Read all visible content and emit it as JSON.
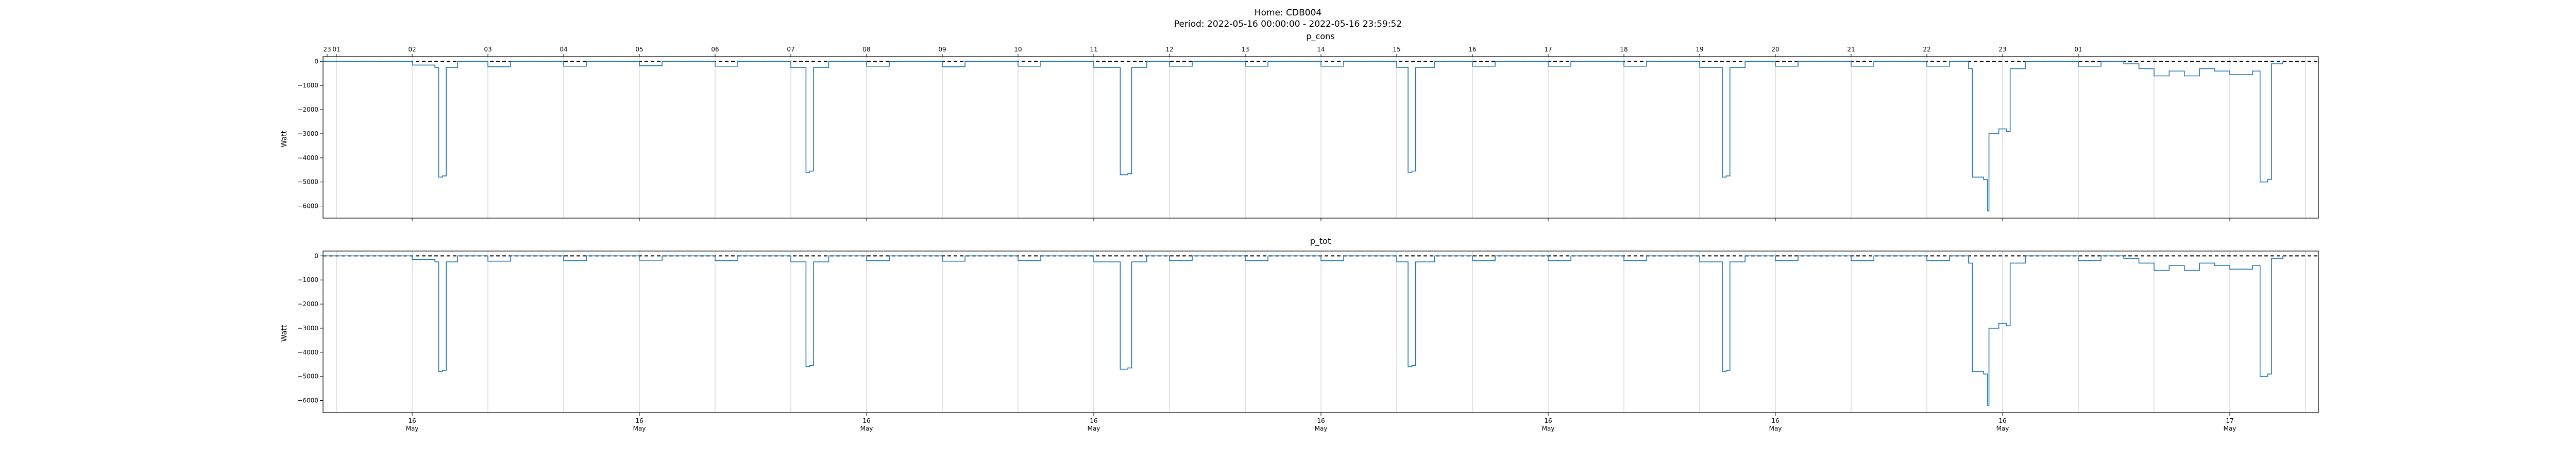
{
  "figure": {
    "suptitle_line1": "Home: CDB004",
    "suptitle_line2": "Period: 2022-05-16 00:00:00 - 2022-05-16 23:59:52"
  },
  "chart_data": [
    {
      "type": "line",
      "title": "p_cons",
      "ylabel": "Watt",
      "xlabel": "",
      "ylim": [
        -6500,
        200
      ],
      "yticks": [
        0,
        -1000,
        -2000,
        -3000,
        -4000,
        -5000,
        -6000
      ],
      "ytick_labels": [
        "0",
        "−1000",
        "−2000",
        "−3000",
        "−4000",
        "−5000",
        "−6000"
      ],
      "reference_line": {
        "y": 0,
        "style": "dashed",
        "color": "#000000"
      },
      "top_axis_hour_labels": [
        "23",
        "01",
        "02",
        "03",
        "04",
        "05",
        "06",
        "07",
        "08",
        "09",
        "10",
        "11",
        "12",
        "13",
        "14",
        "15",
        "16",
        "17",
        "18",
        "19",
        "20",
        "21",
        "22",
        "23",
        "01"
      ],
      "grid": "vertical hourly",
      "series": [
        {
          "color": "#1f77b4",
          "points": [
            [
              -1.2,
              0
            ],
            [
              0,
              -150
            ],
            [
              0.3,
              -250
            ],
            [
              0.35,
              -4800
            ],
            [
              0.4,
              -4750
            ],
            [
              0.45,
              -250
            ],
            [
              0.6,
              0
            ],
            [
              1,
              -220
            ],
            [
              1.3,
              0
            ],
            [
              2,
              -200
            ],
            [
              2.3,
              0
            ],
            [
              3,
              -180
            ],
            [
              3.3,
              0
            ],
            [
              4,
              -200
            ],
            [
              4.3,
              0
            ],
            [
              5,
              -250
            ],
            [
              5.2,
              -4600
            ],
            [
              5.25,
              -4550
            ],
            [
              5.3,
              -250
            ],
            [
              5.5,
              0
            ],
            [
              6,
              -200
            ],
            [
              6.3,
              0
            ],
            [
              7,
              -220
            ],
            [
              7.3,
              0
            ],
            [
              8,
              -200
            ],
            [
              8.3,
              0
            ],
            [
              9,
              -250
            ],
            [
              9.35,
              -4700
            ],
            [
              9.45,
              -4650
            ],
            [
              9.5,
              -250
            ],
            [
              9.7,
              0
            ],
            [
              10,
              -200
            ],
            [
              10.3,
              0
            ],
            [
              11,
              -200
            ],
            [
              11.3,
              0
            ],
            [
              12,
              -200
            ],
            [
              12.3,
              0
            ],
            [
              13,
              -250
            ],
            [
              13.15,
              -4600
            ],
            [
              13.2,
              -4550
            ],
            [
              13.25,
              -250
            ],
            [
              13.5,
              0
            ],
            [
              14,
              -200
            ],
            [
              14.3,
              0
            ],
            [
              15,
              -200
            ],
            [
              15.3,
              0
            ],
            [
              16,
              -200
            ],
            [
              16.3,
              0
            ],
            [
              17,
              -250
            ],
            [
              17.3,
              -4800
            ],
            [
              17.35,
              -4750
            ],
            [
              17.4,
              -250
            ],
            [
              17.6,
              0
            ],
            [
              18,
              -200
            ],
            [
              18.3,
              0
            ],
            [
              19,
              -200
            ],
            [
              19.3,
              0
            ],
            [
              20,
              -200
            ],
            [
              20.3,
              0
            ],
            [
              20.55,
              -300
            ],
            [
              20.6,
              -4800
            ],
            [
              20.75,
              -4900
            ],
            [
              20.8,
              -6200
            ],
            [
              20.82,
              -3000
            ],
            [
              20.95,
              -2800
            ],
            [
              21.05,
              -2900
            ],
            [
              21.1,
              -300
            ],
            [
              21.3,
              0
            ],
            [
              22,
              -200
            ],
            [
              22.3,
              0
            ],
            [
              22.6,
              -100
            ],
            [
              22.8,
              -300
            ],
            [
              23.0,
              -600
            ],
            [
              23.2,
              -400
            ],
            [
              23.4,
              -600
            ],
            [
              23.6,
              -300
            ],
            [
              23.8,
              -400
            ],
            [
              24.0,
              -550
            ],
            [
              24.3,
              -400
            ],
            [
              24.4,
              -5000
            ],
            [
              24.5,
              -4900
            ],
            [
              24.55,
              -100
            ],
            [
              24.7,
              0
            ]
          ]
        }
      ]
    },
    {
      "type": "line",
      "title": "p_tot",
      "ylabel": "Watt",
      "xlabel": "",
      "ylim": [
        -6500,
        200
      ],
      "yticks": [
        0,
        -1000,
        -2000,
        -3000,
        -4000,
        -5000,
        -6000
      ],
      "ytick_labels": [
        "0",
        "−1000",
        "−2000",
        "−3000",
        "−4000",
        "−5000",
        "−6000"
      ],
      "reference_line": {
        "y": 0,
        "style": "dashed",
        "color": "#000000"
      },
      "bottom_axis_labels": [
        {
          "day": "16",
          "month": "May"
        },
        {
          "day": "16",
          "month": "May"
        },
        {
          "day": "16",
          "month": "May"
        },
        {
          "day": "16",
          "month": "May"
        },
        {
          "day": "16",
          "month": "May"
        },
        {
          "day": "16",
          "month": "May"
        },
        {
          "day": "16",
          "month": "May"
        },
        {
          "day": "16",
          "month": "May"
        },
        {
          "day": "17",
          "month": "May"
        }
      ],
      "grid": "vertical hourly",
      "series": [
        {
          "color": "#1f77b4",
          "points": [
            [
              -1.2,
              0
            ],
            [
              0,
              -150
            ],
            [
              0.3,
              -250
            ],
            [
              0.35,
              -4800
            ],
            [
              0.4,
              -4750
            ],
            [
              0.45,
              -250
            ],
            [
              0.6,
              0
            ],
            [
              1,
              -220
            ],
            [
              1.3,
              0
            ],
            [
              2,
              -200
            ],
            [
              2.3,
              0
            ],
            [
              3,
              -180
            ],
            [
              3.3,
              0
            ],
            [
              4,
              -200
            ],
            [
              4.3,
              0
            ],
            [
              5,
              -250
            ],
            [
              5.2,
              -4600
            ],
            [
              5.25,
              -4550
            ],
            [
              5.3,
              -250
            ],
            [
              5.5,
              0
            ],
            [
              6,
              -200
            ],
            [
              6.3,
              0
            ],
            [
              7,
              -220
            ],
            [
              7.3,
              0
            ],
            [
              8,
              -200
            ],
            [
              8.3,
              0
            ],
            [
              9,
              -250
            ],
            [
              9.35,
              -4700
            ],
            [
              9.45,
              -4650
            ],
            [
              9.5,
              -250
            ],
            [
              9.7,
              0
            ],
            [
              10,
              -200
            ],
            [
              10.3,
              0
            ],
            [
              11,
              -200
            ],
            [
              11.3,
              0
            ],
            [
              12,
              -200
            ],
            [
              12.3,
              0
            ],
            [
              13,
              -250
            ],
            [
              13.15,
              -4600
            ],
            [
              13.2,
              -4550
            ],
            [
              13.25,
              -250
            ],
            [
              13.5,
              0
            ],
            [
              14,
              -200
            ],
            [
              14.3,
              0
            ],
            [
              15,
              -200
            ],
            [
              15.3,
              0
            ],
            [
              16,
              -200
            ],
            [
              16.3,
              0
            ],
            [
              17,
              -250
            ],
            [
              17.3,
              -4800
            ],
            [
              17.35,
              -4750
            ],
            [
              17.4,
              -250
            ],
            [
              17.6,
              0
            ],
            [
              18,
              -200
            ],
            [
              18.3,
              0
            ],
            [
              19,
              -200
            ],
            [
              19.3,
              0
            ],
            [
              20,
              -200
            ],
            [
              20.3,
              0
            ],
            [
              20.55,
              -300
            ],
            [
              20.6,
              -4800
            ],
            [
              20.75,
              -4900
            ],
            [
              20.8,
              -6200
            ],
            [
              20.82,
              -3000
            ],
            [
              20.95,
              -2800
            ],
            [
              21.05,
              -2900
            ],
            [
              21.1,
              -300
            ],
            [
              21.3,
              0
            ],
            [
              22,
              -200
            ],
            [
              22.3,
              0
            ],
            [
              22.6,
              -100
            ],
            [
              22.8,
              -300
            ],
            [
              23.0,
              -600
            ],
            [
              23.2,
              -400
            ],
            [
              23.4,
              -600
            ],
            [
              23.6,
              -300
            ],
            [
              23.8,
              -400
            ],
            [
              24.0,
              -550
            ],
            [
              24.3,
              -400
            ],
            [
              24.4,
              -5000
            ],
            [
              24.5,
              -4900
            ],
            [
              24.55,
              -100
            ],
            [
              24.7,
              0
            ]
          ]
        }
      ]
    }
  ]
}
